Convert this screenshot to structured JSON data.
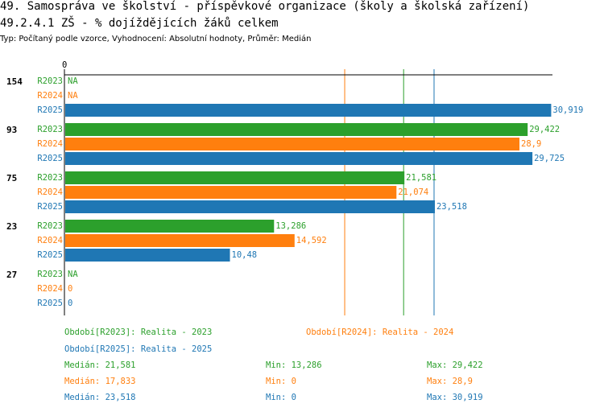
{
  "title_line1": "49. Samospráva ve školství - příspěvkové organizace (školy a školská zařízení)",
  "title_line2": "49.2.4.1 ZŠ - % dojíždějících žáků celkem",
  "subtitle": "Typ: Počítaný podle vzorce, Vyhodnocení: Absolutní hodnoty, Průměr: Medián",
  "colors": {
    "R2023": "#2ca02c",
    "R2024": "#ff7f0e",
    "R2025": "#1f77b4"
  },
  "chart_data": {
    "type": "bar",
    "orientation": "horizontal",
    "axis_zero_label": "0",
    "xlim": [
      0,
      31.8
    ],
    "groups": [
      "154",
      "93",
      "75",
      "23",
      "27"
    ],
    "series": [
      {
        "name": "R2023",
        "values": [
          null,
          29.422,
          21.581,
          13.286,
          null
        ],
        "labels": [
          "NA",
          "29,422",
          "21,581",
          "13,286",
          "NA"
        ]
      },
      {
        "name": "R2024",
        "values": [
          null,
          28.9,
          21.074,
          14.592,
          0
        ],
        "labels": [
          "NA",
          "28,9",
          "21,074",
          "14,592",
          "0"
        ]
      },
      {
        "name": "R2025",
        "values": [
          30.919,
          29.725,
          23.518,
          10.48,
          0
        ],
        "labels": [
          "30,919",
          "29,725",
          "23,518",
          "10,48",
          "0"
        ]
      }
    ],
    "median_lines": {
      "R2023": 21.581,
      "R2024": 17.833,
      "R2025": 23.518
    }
  },
  "legend": {
    "period_2023": "Období[R2023]: Realita - 2023",
    "period_2024": "Období[R2024]: Realita - 2024",
    "period_2025": "Období[R2025]: Realita - 2025",
    "stats": [
      {
        "series": "R2023",
        "median": "Medián: 21,581",
        "min": "Min: 13,286",
        "max": "Max: 29,422"
      },
      {
        "series": "R2024",
        "median": "Medián: 17,833",
        "min": "Min: 0",
        "max": "Max: 28,9"
      },
      {
        "series": "R2025",
        "median": "Medián: 23,518",
        "min": "Min: 0",
        "max": "Max: 30,919"
      }
    ]
  }
}
